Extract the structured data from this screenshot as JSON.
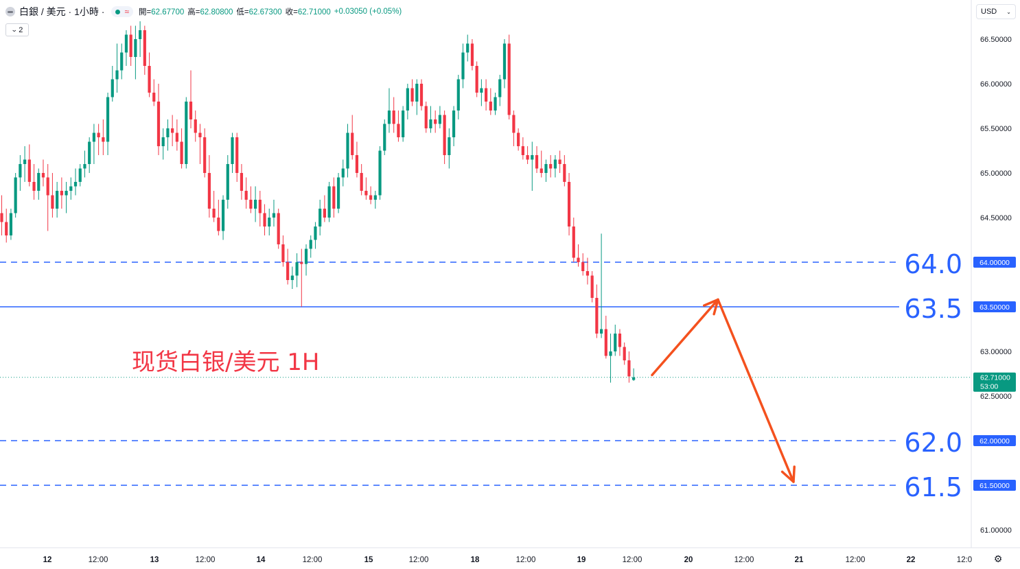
{
  "header": {
    "symbol": "白銀 / 美元 · 1小時 ·",
    "open_label": "開=",
    "open": "62.67700",
    "high_label": "高=",
    "high": "62.80800",
    "low_label": "低=",
    "low": "62.67300",
    "close_label": "收=",
    "close": "62.71000",
    "change": "+0.03050 (+0.05%)",
    "status_icon": "market-open-dot-icon",
    "wave_icon": "wave-icon"
  },
  "lines_toggle": {
    "count": "2",
    "icon": "chevron-down-icon"
  },
  "currency": {
    "label": "USD",
    "icon": "chevron-down-icon"
  },
  "settings_icon": "gear-icon",
  "annotation": "现货白银/美元 1H",
  "colors": {
    "up": "#089981",
    "down": "#f23645",
    "level": "#2962ff",
    "arrow": "#f4511e",
    "text": "#131722",
    "annotation": "#f23645"
  },
  "chart_data": {
    "type": "candlestick",
    "title": "白銀 / 美元 · 1小時",
    "y_axis": {
      "ylim": [
        60.82,
        66.9
      ],
      "tick_labels": [
        "66.50000",
        "66.00000",
        "65.50000",
        "65.00000",
        "64.50000",
        "63.00000",
        "62.50000",
        "61.00000"
      ],
      "tick_values": [
        66.5,
        66.0,
        65.5,
        65.0,
        64.5,
        63.0,
        62.5,
        61.0
      ]
    },
    "x_axis": {
      "tick_labels": [
        "12",
        "12:00",
        "13",
        "12:00",
        "14",
        "12:00",
        "15",
        "12:00",
        "18",
        "12:00",
        "19",
        "12:00",
        "20",
        "12:00",
        "21",
        "12:00",
        "22",
        "12:0"
      ],
      "bold_labels": [
        "12",
        "13",
        "14",
        "15",
        "18",
        "19",
        "20",
        "21",
        "22"
      ]
    },
    "last_price": {
      "value": 62.71,
      "label": "62.71000",
      "countdown": "53:00"
    },
    "levels": [
      {
        "value": 64.0,
        "style": "dashed",
        "big_label": "64.0",
        "axis_label": "64.00000"
      },
      {
        "value": 63.5,
        "style": "solid",
        "big_label": "63.5",
        "axis_label": "63.50000"
      },
      {
        "value": 62.0,
        "style": "dashed",
        "big_label": "62.0",
        "axis_label": "62.00000"
      },
      {
        "value": 61.5,
        "style": "dashed",
        "big_label": "61.5",
        "axis_label": "61.50000"
      }
    ],
    "projection_path": [
      62.72,
      63.55,
      61.5
    ],
    "candles_ohlc": [
      [
        64.55,
        64.75,
        64.3,
        64.45
      ],
      [
        64.45,
        64.6,
        64.22,
        64.3
      ],
      [
        64.3,
        64.6,
        64.25,
        64.55
      ],
      [
        64.55,
        65.0,
        64.5,
        64.95
      ],
      [
        64.95,
        65.2,
        64.8,
        65.1
      ],
      [
        65.1,
        65.3,
        64.9,
        65.15
      ],
      [
        65.15,
        65.32,
        64.85,
        64.9
      ],
      [
        64.9,
        65.1,
        64.7,
        64.8
      ],
      [
        64.8,
        65.05,
        64.7,
        65.0
      ],
      [
        65.0,
        65.15,
        64.85,
        64.95
      ],
      [
        64.95,
        65.1,
        64.35,
        64.75
      ],
      [
        64.75,
        65.0,
        64.5,
        64.6
      ],
      [
        64.6,
        64.9,
        64.5,
        64.8
      ],
      [
        64.8,
        64.95,
        64.6,
        64.75
      ],
      [
        64.75,
        64.9,
        64.55,
        64.8
      ],
      [
        64.8,
        64.95,
        64.7,
        64.85
      ],
      [
        64.85,
        65.05,
        64.75,
        64.9
      ],
      [
        64.9,
        65.1,
        64.85,
        65.05
      ],
      [
        65.05,
        65.25,
        64.95,
        65.1
      ],
      [
        65.1,
        65.4,
        65.0,
        65.35
      ],
      [
        65.35,
        65.55,
        65.1,
        65.45
      ],
      [
        65.45,
        65.55,
        65.2,
        65.4
      ],
      [
        65.4,
        65.6,
        65.2,
        65.35
      ],
      [
        65.35,
        65.9,
        65.2,
        65.85
      ],
      [
        65.85,
        66.2,
        65.8,
        66.05
      ],
      [
        66.05,
        66.45,
        65.9,
        66.15
      ],
      [
        66.15,
        66.45,
        66.05,
        66.35
      ],
      [
        66.35,
        66.6,
        66.2,
        66.55
      ],
      [
        66.55,
        66.65,
        66.2,
        66.3
      ],
      [
        66.3,
        66.65,
        66.05,
        66.5
      ],
      [
        66.5,
        66.7,
        66.3,
        66.6
      ],
      [
        66.6,
        66.65,
        66.1,
        66.2
      ],
      [
        66.2,
        66.35,
        65.85,
        65.9
      ],
      [
        65.9,
        66.05,
        65.75,
        65.8
      ],
      [
        65.8,
        66.0,
        65.2,
        65.3
      ],
      [
        65.3,
        65.5,
        65.15,
        65.4
      ],
      [
        65.4,
        65.6,
        65.25,
        65.5
      ],
      [
        65.5,
        65.65,
        65.3,
        65.45
      ],
      [
        65.45,
        65.6,
        65.25,
        65.35
      ],
      [
        65.35,
        65.5,
        65.05,
        65.1
      ],
      [
        65.1,
        65.85,
        65.05,
        65.8
      ],
      [
        65.8,
        66.15,
        65.5,
        65.6
      ],
      [
        65.6,
        65.7,
        65.35,
        65.45
      ],
      [
        65.45,
        65.55,
        65.1,
        65.4
      ],
      [
        65.4,
        65.5,
        64.95,
        65.0
      ],
      [
        65.0,
        65.2,
        64.5,
        64.6
      ],
      [
        64.6,
        64.8,
        64.45,
        64.5
      ],
      [
        64.5,
        64.7,
        64.3,
        64.35
      ],
      [
        64.35,
        64.75,
        64.25,
        64.7
      ],
      [
        64.7,
        65.2,
        64.6,
        65.1
      ],
      [
        65.1,
        65.45,
        65.0,
        65.4
      ],
      [
        65.4,
        65.45,
        64.9,
        65.0
      ],
      [
        65.0,
        65.1,
        64.7,
        64.8
      ],
      [
        64.8,
        64.95,
        64.6,
        64.7
      ],
      [
        64.7,
        64.85,
        64.55,
        64.6
      ],
      [
        64.6,
        64.85,
        64.45,
        64.7
      ],
      [
        64.7,
        64.8,
        64.4,
        64.55
      ],
      [
        64.55,
        64.65,
        64.3,
        64.4
      ],
      [
        64.4,
        64.6,
        64.3,
        64.5
      ],
      [
        64.5,
        64.7,
        64.4,
        64.55
      ],
      [
        64.55,
        64.6,
        64.15,
        64.2
      ],
      [
        64.2,
        64.3,
        63.95,
        64.0
      ],
      [
        64.0,
        64.15,
        63.75,
        63.8
      ],
      [
        63.8,
        63.95,
        63.7,
        63.85
      ],
      [
        63.85,
        64.1,
        63.72,
        64.0
      ],
      [
        64.0,
        64.15,
        63.5,
        63.98
      ],
      [
        63.98,
        64.2,
        63.85,
        64.15
      ],
      [
        64.15,
        64.3,
        64.05,
        64.25
      ],
      [
        64.25,
        64.45,
        64.15,
        64.4
      ],
      [
        64.4,
        64.7,
        64.3,
        64.6
      ],
      [
        64.6,
        64.75,
        64.45,
        64.5
      ],
      [
        64.5,
        64.9,
        64.45,
        64.85
      ],
      [
        64.85,
        64.95,
        64.5,
        64.6
      ],
      [
        64.6,
        65.0,
        64.55,
        64.95
      ],
      [
        64.95,
        65.15,
        64.85,
        65.05
      ],
      [
        65.05,
        65.55,
        64.95,
        65.45
      ],
      [
        65.45,
        65.65,
        65.15,
        65.2
      ],
      [
        65.2,
        65.35,
        64.95,
        65.0
      ],
      [
        65.0,
        65.1,
        64.75,
        64.8
      ],
      [
        64.8,
        64.95,
        64.7,
        64.75
      ],
      [
        64.75,
        64.85,
        64.65,
        64.7
      ],
      [
        64.7,
        64.8,
        64.6,
        64.75
      ],
      [
        64.75,
        65.3,
        64.7,
        65.25
      ],
      [
        65.25,
        65.6,
        65.2,
        65.55
      ],
      [
        65.55,
        65.95,
        65.45,
        65.7
      ],
      [
        65.7,
        65.85,
        65.45,
        65.55
      ],
      [
        65.55,
        65.7,
        65.35,
        65.4
      ],
      [
        65.4,
        65.75,
        65.35,
        65.7
      ],
      [
        65.7,
        66.0,
        65.6,
        65.95
      ],
      [
        65.95,
        66.05,
        65.75,
        65.8
      ],
      [
        65.8,
        66.05,
        65.65,
        66.0
      ],
      [
        66.0,
        66.05,
        65.7,
        65.75
      ],
      [
        65.75,
        65.8,
        65.45,
        65.5
      ],
      [
        65.5,
        65.75,
        65.45,
        65.6
      ],
      [
        65.6,
        65.7,
        65.45,
        65.55
      ],
      [
        65.55,
        65.75,
        65.5,
        65.65
      ],
      [
        65.65,
        65.7,
        65.1,
        65.2
      ],
      [
        65.2,
        65.5,
        65.05,
        65.4
      ],
      [
        65.4,
        65.75,
        65.3,
        65.7
      ],
      [
        65.7,
        66.1,
        65.6,
        66.05
      ],
      [
        66.05,
        66.45,
        65.95,
        66.35
      ],
      [
        66.35,
        66.55,
        66.25,
        66.45
      ],
      [
        66.45,
        66.5,
        66.15,
        66.2
      ],
      [
        66.2,
        66.25,
        65.85,
        65.9
      ],
      [
        65.9,
        66.05,
        65.75,
        65.95
      ],
      [
        65.95,
        66.05,
        65.7,
        65.8
      ],
      [
        65.8,
        65.95,
        65.65,
        65.7
      ],
      [
        65.7,
        65.9,
        65.65,
        65.85
      ],
      [
        65.85,
        66.1,
        65.75,
        66.05
      ],
      [
        66.05,
        66.5,
        65.95,
        66.45
      ],
      [
        66.45,
        66.55,
        65.6,
        65.65
      ],
      [
        65.65,
        65.7,
        65.3,
        65.45
      ],
      [
        65.45,
        65.5,
        65.25,
        65.3
      ],
      [
        65.3,
        65.4,
        65.15,
        65.2
      ],
      [
        65.2,
        65.3,
        65.1,
        65.15
      ],
      [
        65.15,
        65.35,
        64.8,
        65.2
      ],
      [
        65.2,
        65.3,
        65.0,
        65.05
      ],
      [
        65.05,
        65.25,
        64.95,
        65.0
      ],
      [
        65.0,
        65.15,
        64.9,
        65.1
      ],
      [
        65.1,
        65.2,
        64.95,
        65.05
      ],
      [
        65.05,
        65.2,
        64.95,
        65.15
      ],
      [
        65.15,
        65.25,
        65.0,
        65.1
      ],
      [
        65.1,
        65.2,
        64.85,
        64.9
      ],
      [
        64.9,
        65.0,
        64.3,
        64.4
      ],
      [
        64.4,
        64.5,
        64.0,
        64.05
      ],
      [
        64.05,
        64.2,
        63.95,
        64.0
      ],
      [
        64.0,
        64.1,
        63.85,
        63.9
      ],
      [
        63.9,
        64.05,
        63.75,
        63.85
      ],
      [
        63.85,
        63.9,
        63.55,
        63.6
      ],
      [
        63.6,
        63.75,
        63.15,
        63.2
      ],
      [
        63.2,
        64.32,
        63.15,
        63.25
      ],
      [
        63.25,
        63.4,
        62.92,
        62.95
      ],
      [
        62.95,
        63.2,
        62.65,
        63.0
      ],
      [
        63.0,
        63.3,
        62.95,
        63.2
      ],
      [
        63.2,
        63.25,
        62.95,
        63.05
      ],
      [
        63.05,
        63.1,
        62.85,
        62.9
      ],
      [
        62.9,
        63.0,
        62.65,
        62.72
      ],
      [
        62.68,
        62.81,
        62.67,
        62.71
      ]
    ]
  }
}
